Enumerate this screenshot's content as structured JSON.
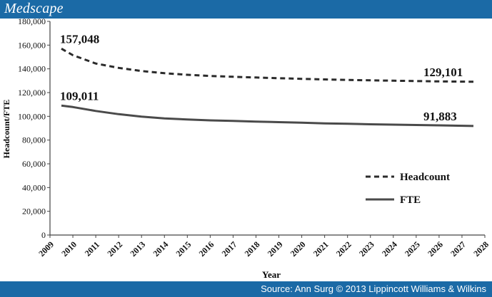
{
  "header": {
    "brand": "Medscape"
  },
  "footer": {
    "source": "Source: Ann Surg © 2013 Lippincott Williams & Wilkins"
  },
  "chart_data": {
    "type": "line",
    "title": "",
    "xlabel": "Year",
    "ylabel": "Headcount/FTE",
    "xlim": [
      2009,
      2028
    ],
    "ylim": [
      0,
      180000
    ],
    "yticks": [
      0,
      20000,
      40000,
      60000,
      80000,
      100000,
      120000,
      140000,
      160000,
      180000
    ],
    "ytick_labels": [
      "0",
      "20,000",
      "40,000",
      "60,000",
      "80,000",
      "100,000",
      "120,000",
      "140,000",
      "160,000",
      "180,000"
    ],
    "xticks": [
      2009,
      2010,
      2011,
      2012,
      2013,
      2014,
      2015,
      2016,
      2017,
      2018,
      2019,
      2020,
      2021,
      2022,
      2023,
      2024,
      2025,
      2026,
      2027,
      2028
    ],
    "grid": false,
    "legend": "bottom-right",
    "series": [
      {
        "name": "Headcount",
        "style": "dashed",
        "color": "#2b2b2b",
        "x": [
          2009.5,
          2010,
          2011,
          2012,
          2013,
          2014,
          2015,
          2016,
          2017,
          2018,
          2019,
          2020,
          2021,
          2022,
          2023,
          2024,
          2025,
          2026,
          2027.5
        ],
        "y": [
          157048,
          151500,
          144500,
          140800,
          138200,
          136300,
          135000,
          134000,
          133300,
          132700,
          132100,
          131600,
          131100,
          130700,
          130300,
          130000,
          129700,
          129400,
          129101
        ]
      },
      {
        "name": "FTE",
        "style": "solid",
        "color": "#4a4a4a",
        "x": [
          2009.5,
          2010,
          2011,
          2012,
          2013,
          2014,
          2015,
          2016,
          2017,
          2018,
          2019,
          2020,
          2021,
          2022,
          2023,
          2024,
          2025,
          2026,
          2027.5
        ],
        "y": [
          109011,
          107800,
          104500,
          101800,
          99800,
          98300,
          97300,
          96600,
          96100,
          95600,
          95100,
          94600,
          94100,
          93700,
          93300,
          93000,
          92700,
          92400,
          91883
        ]
      }
    ],
    "annotations": [
      {
        "text": "157,048",
        "x": 2009.5,
        "y": 157048,
        "series": "Headcount"
      },
      {
        "text": "129,101",
        "x": 2027.5,
        "y": 129101,
        "series": "Headcount"
      },
      {
        "text": "109,011",
        "x": 2009.5,
        "y": 109011,
        "series": "FTE"
      },
      {
        "text": "91,883",
        "x": 2027.5,
        "y": 91883,
        "series": "FTE"
      }
    ]
  }
}
